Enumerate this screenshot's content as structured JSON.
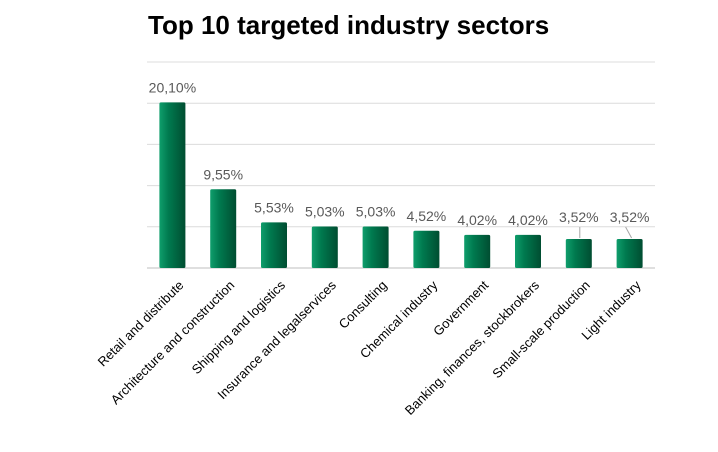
{
  "chart_data": {
    "type": "bar",
    "title": "Top 10 targeted industry sectors",
    "xlabel": "",
    "ylabel": "",
    "categories": [
      "Retail and distribute",
      "Architecture and construction",
      "Shipping and logistics",
      "Insurance and legalservices",
      "Consulting",
      "Chemical industry",
      "Government",
      "Banking, finances, stockbrokers",
      "Small-scale production",
      "Light industry"
    ],
    "values": [
      20.1,
      9.55,
      5.53,
      5.03,
      5.03,
      4.52,
      4.02,
      4.02,
      3.52,
      3.52
    ],
    "data_labels": [
      "20,10%",
      "9,55%",
      "5,53%",
      "5,03%",
      "5,03%",
      "4,52%",
      "4,02%",
      "4,02%",
      "3,52%",
      "3,52%"
    ],
    "ylim": [
      0,
      25
    ],
    "grid": true,
    "legend": "none",
    "colors": {
      "bar_light": "#0f9e6c",
      "bar_mid": "#007a4f",
      "bar_dark": "#004d31",
      "grid": "#dcdcdc"
    }
  }
}
